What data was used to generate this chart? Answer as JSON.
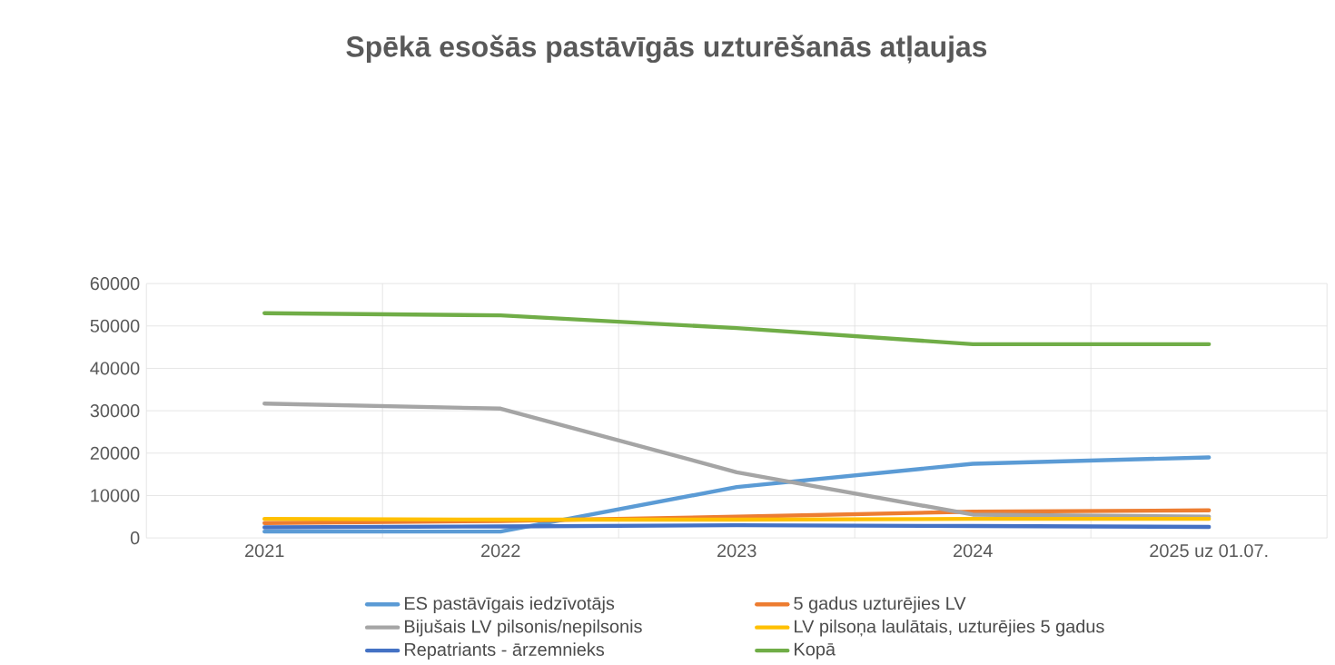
{
  "chart_data": {
    "type": "line",
    "title": "Spēkā esošās pastāvīgās uzturēšanās atļaujas",
    "categories": [
      "2021",
      "2022",
      "2023",
      "2024",
      "2025 uz 01.07."
    ],
    "series": [
      {
        "name": "ES pastāvīgais iedzīvotājs",
        "color": "#5b9bd5",
        "values": [
          1500,
          1500,
          12000,
          17500,
          19000
        ]
      },
      {
        "name": "5 gadus uzturējies LV",
        "color": "#ed7d31",
        "values": [
          3500,
          4000,
          5000,
          6200,
          6500
        ]
      },
      {
        "name": "Bijušais LV pilsonis/nepilsonis",
        "color": "#a5a5a5",
        "values": [
          31700,
          30500,
          15500,
          5500,
          5000
        ]
      },
      {
        "name": "LV pilsoņa laulātais, uzturējies 5 gadus",
        "color": "#ffc000",
        "values": [
          4500,
          4300,
          4300,
          4500,
          4500
        ]
      },
      {
        "name": "Repatriants - ārzemnieks",
        "color": "#4472c4",
        "values": [
          2500,
          2700,
          3000,
          2800,
          2600
        ]
      },
      {
        "name": "Kopā",
        "color": "#70ad47",
        "values": [
          53000,
          52500,
          49500,
          45700,
          45700
        ]
      }
    ],
    "ylim": [
      0,
      60000
    ],
    "yticks": [
      0,
      10000,
      20000,
      30000,
      40000,
      50000,
      60000
    ],
    "grid": true,
    "legend": "bottom",
    "marker": "none",
    "line_style": "solid"
  }
}
